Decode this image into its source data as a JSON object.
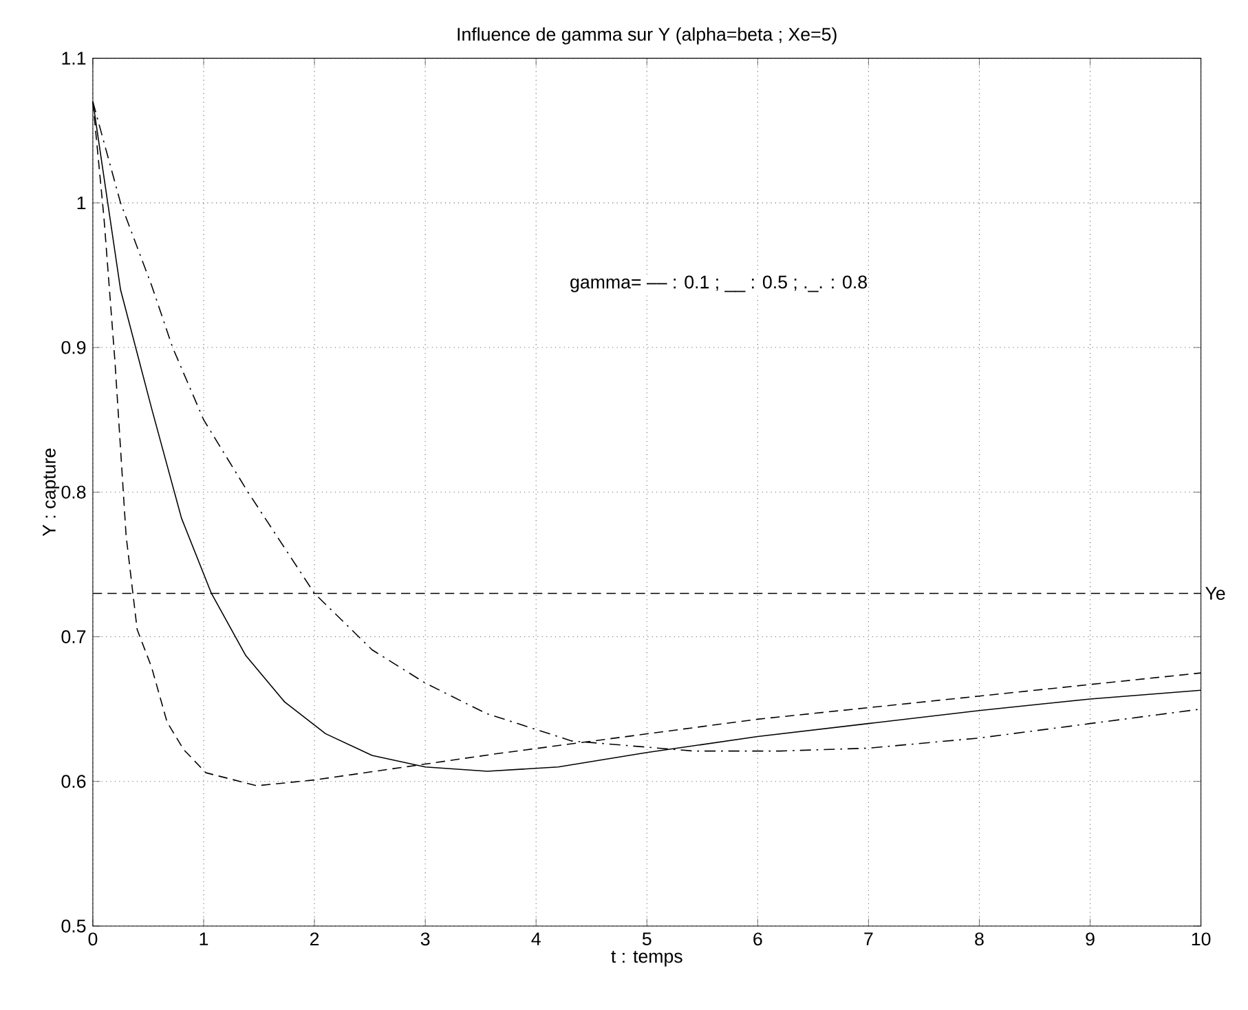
{
  "chart_data": {
    "type": "line",
    "title": "Influence de gamma sur Y (alpha=beta ; Xe=5)",
    "xlabel": "t : temps",
    "ylabel": "Y : capture",
    "series": [
      {
        "color": "#000000",
        "line_style": "dashed",
        "x": [
          0,
          0.1,
          0.2,
          0.3,
          0.4,
          0.53,
          0.67,
          0.82,
          1.02,
          1.48,
          2,
          3,
          3.63,
          6,
          8,
          10
        ],
        "values": [
          1.07,
          0.99,
          0.89,
          0.77,
          0.705,
          0.679,
          0.641,
          0.622,
          0.606,
          0.597,
          0.601,
          0.612,
          0.619,
          0.643,
          0.659,
          0.675
        ]
      },
      {
        "color": "#000000",
        "line_style": "solid",
        "x": [
          0,
          0.25,
          0.53,
          0.8,
          1.07,
          1.38,
          1.73,
          2.1,
          2.52,
          3,
          3.56,
          4.2,
          5,
          6,
          7,
          8,
          9,
          10
        ],
        "values": [
          1.07,
          0.94,
          0.858,
          0.782,
          0.73,
          0.687,
          0.655,
          0.633,
          0.618,
          0.61,
          0.607,
          0.61,
          0.62,
          0.631,
          0.64,
          0.649,
          0.657,
          0.663
        ]
      },
      {
        "color": "#000000",
        "line_style": "dashdot",
        "x": [
          0,
          0.25,
          0.53,
          0.72,
          1,
          1.4,
          2,
          2.52,
          3,
          3.55,
          4.32,
          5.42,
          6.2,
          7,
          8,
          9,
          10
        ],
        "values": [
          1.07,
          1.0,
          0.943,
          0.9,
          0.85,
          0.8,
          0.73,
          0.691,
          0.668,
          0.647,
          0.628,
          0.621,
          0.621,
          0.623,
          0.63,
          0.64,
          0.65
        ]
      }
    ],
    "xlim": [
      0,
      10
    ],
    "ylim": [
      0.5,
      1.1
    ],
    "xticks": [
      0,
      1,
      2,
      3,
      4,
      5,
      6,
      7,
      8,
      9,
      10
    ],
    "yticks": [
      0.5,
      0.6,
      0.7,
      0.8,
      0.9,
      1,
      1.1
    ],
    "grid": true,
    "ref_lines": [
      {
        "axis": "y",
        "value": 0.73,
        "label": "Ye",
        "line_style": "dashed",
        "color": "#000000"
      }
    ],
    "annotations": [
      "gamma= –– : 0.1 ; __ : 0.5 ; ._. : 0.8"
    ]
  }
}
